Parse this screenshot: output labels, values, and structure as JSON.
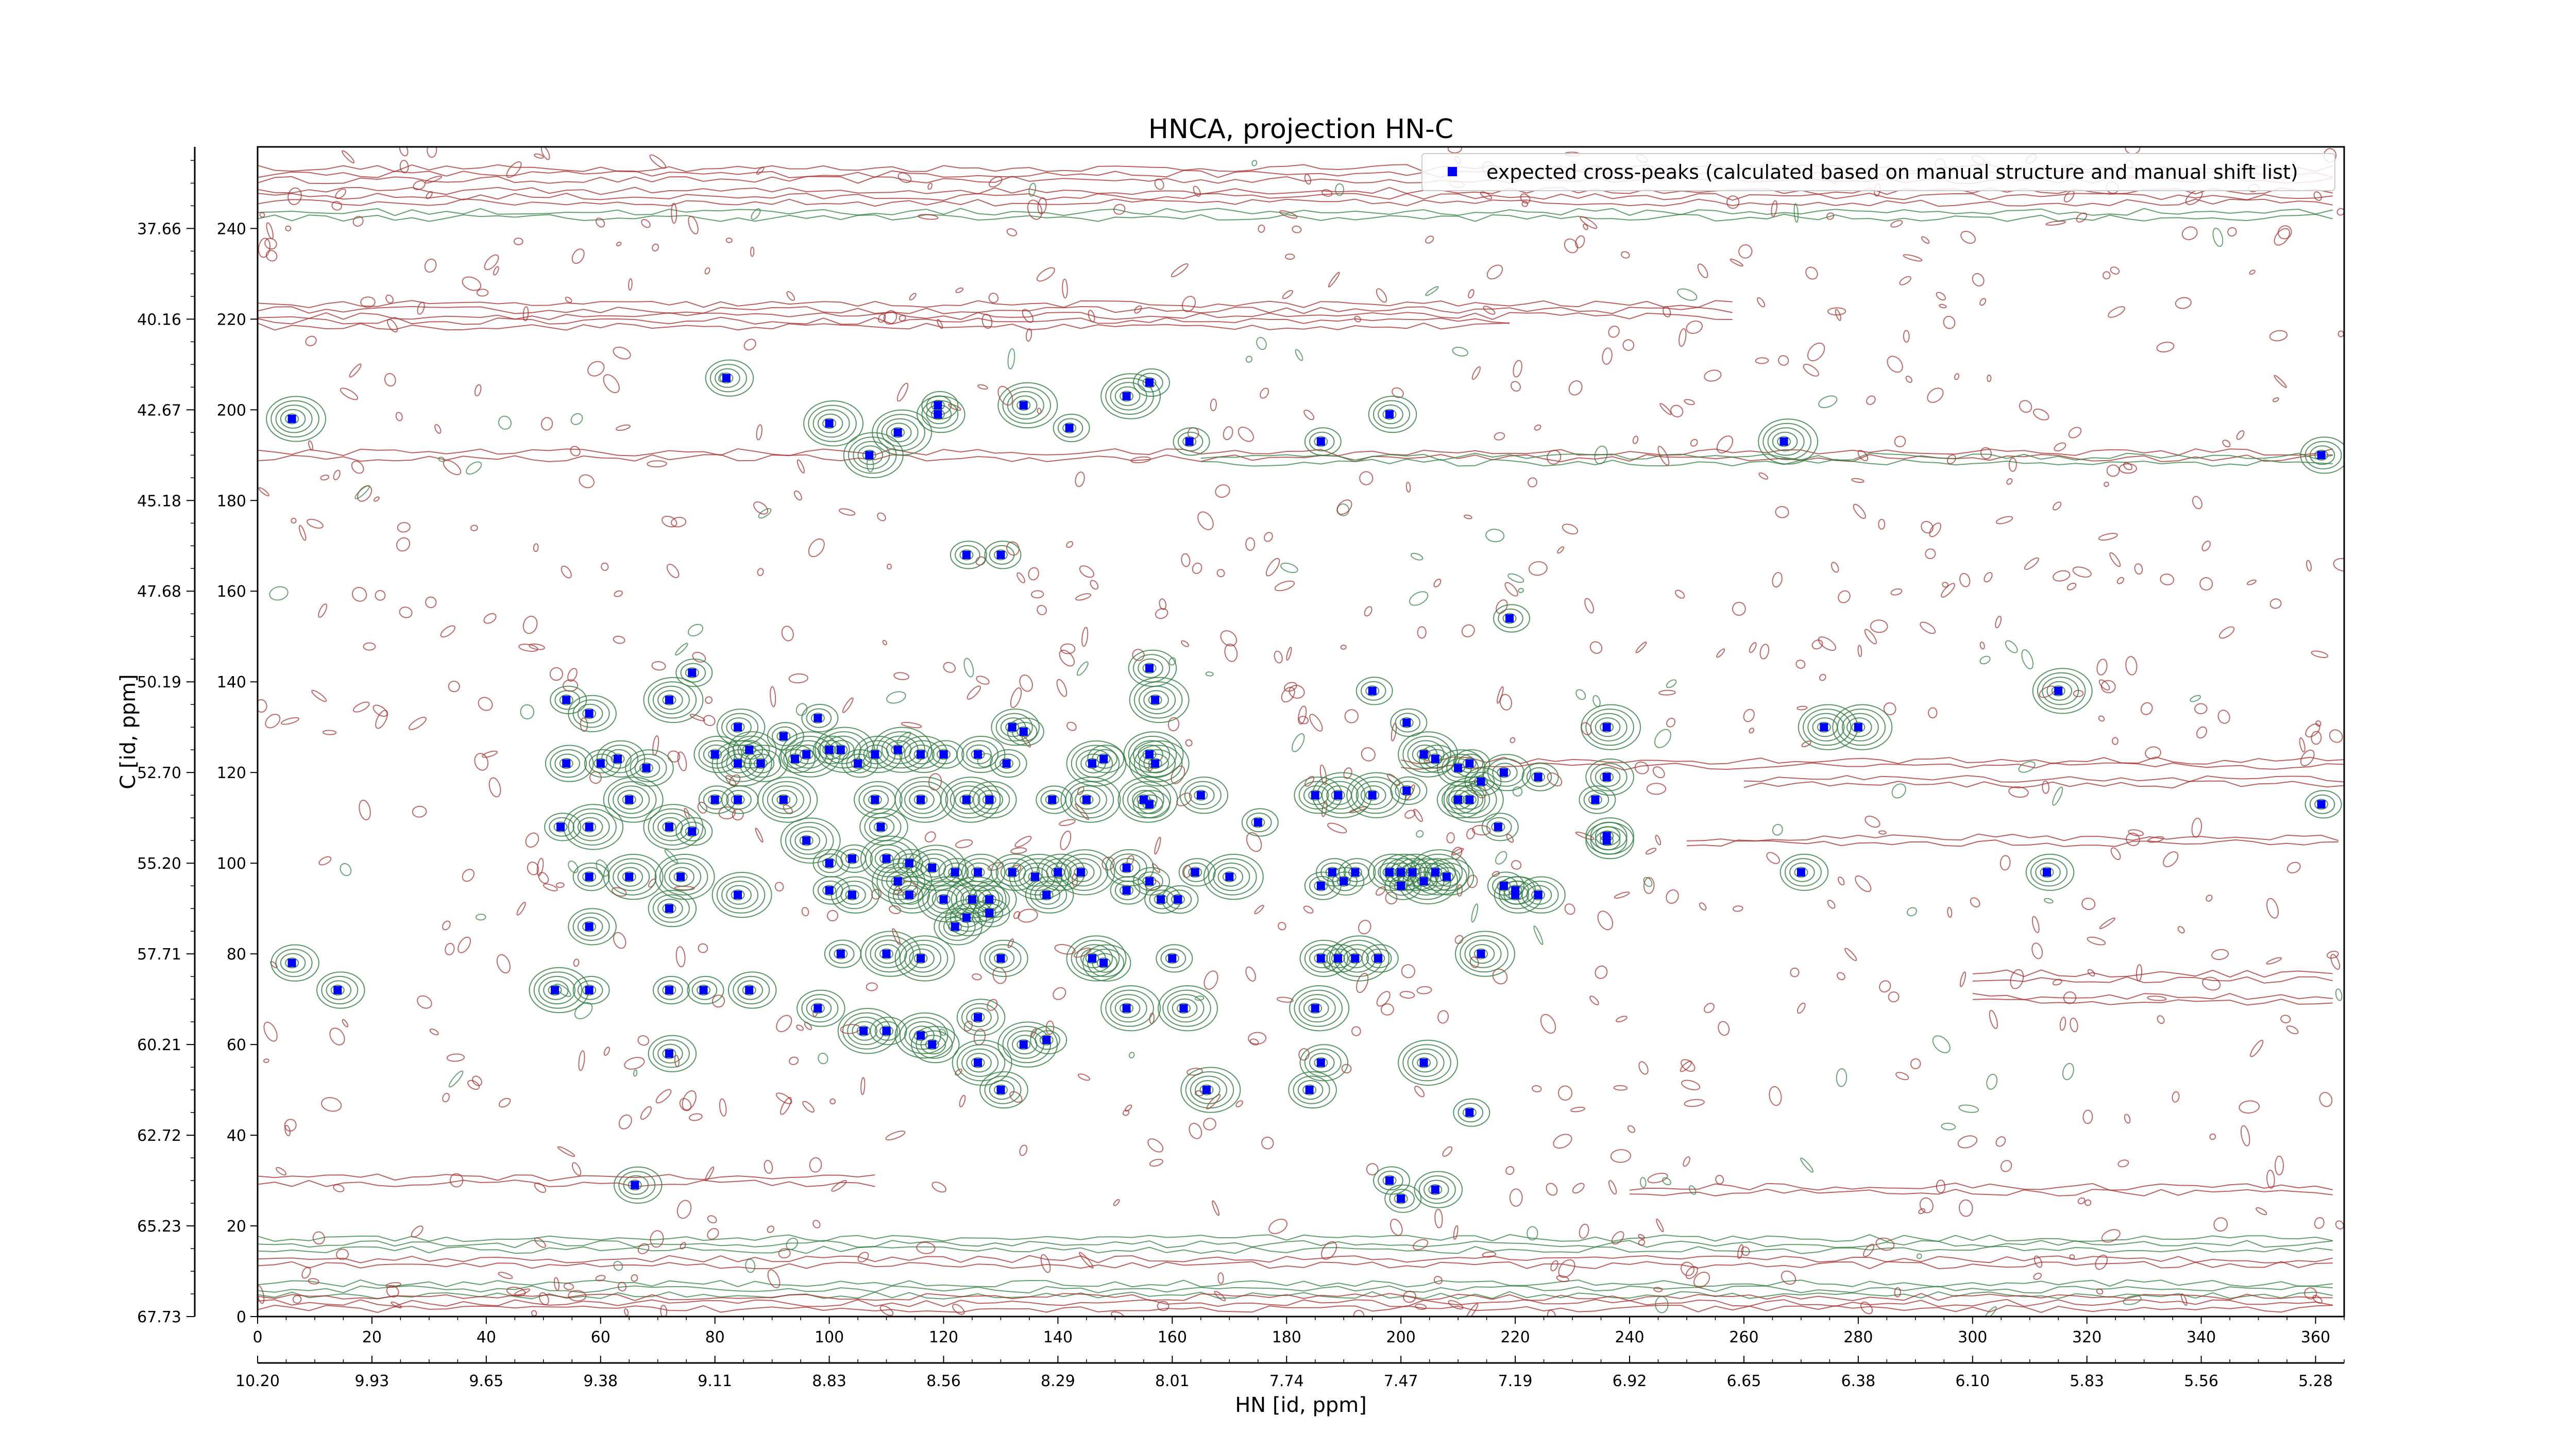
{
  "chart_data": {
    "type": "scatter",
    "title": "HNCA, projection HN-C",
    "xlabel": "HN [id, ppm]",
    "ylabel": "C [id, ppm]",
    "x_index_ticks": [
      "0",
      "20",
      "40",
      "60",
      "80",
      "100",
      "120",
      "140",
      "160",
      "180",
      "200",
      "220",
      "240",
      "260",
      "280",
      "300",
      "320",
      "340",
      "360"
    ],
    "x_ppm_ticks": [
      "10.20",
      "9.93",
      "9.65",
      "9.38",
      "9.11",
      "8.83",
      "8.56",
      "8.29",
      "8.01",
      "7.74",
      "7.47",
      "7.19",
      "6.92",
      "6.65",
      "6.38",
      "6.10",
      "5.83",
      "5.56",
      "5.28"
    ],
    "y_index_ticks": [
      "0",
      "20",
      "40",
      "60",
      "80",
      "100",
      "120",
      "140",
      "160",
      "180",
      "200",
      "220",
      "240"
    ],
    "y_ppm_ticks": [
      "67.73",
      "65.23",
      "62.72",
      "60.21",
      "57.71",
      "55.20",
      "52.70",
      "50.19",
      "47.68",
      "45.18",
      "42.67",
      "40.16",
      "37.66"
    ],
    "xlim": [
      0,
      365
    ],
    "ylim": [
      0,
      258
    ],
    "legend": {
      "placement": "top-right",
      "label": "expected cross-peaks (calculated based on manual structure and manual shift list)"
    },
    "colors": {
      "marker": "#0000ff",
      "contour_positive": "#2e7d3e",
      "contour_negative": "#a52a2a"
    },
    "series": [
      {
        "name": "expected cross-peaks (calculated based on manual structure and manual shift list)",
        "points": [
          [
            6,
            198
          ],
          [
            6,
            78
          ],
          [
            82,
            207
          ],
          [
            100,
            197
          ],
          [
            112,
            195
          ],
          [
            107,
            190
          ],
          [
            119,
            199
          ],
          [
            119,
            201
          ],
          [
            134,
            201
          ],
          [
            142,
            196
          ],
          [
            152,
            203
          ],
          [
            156,
            206
          ],
          [
            163,
            193
          ],
          [
            186,
            193
          ],
          [
            198,
            199
          ],
          [
            267,
            193
          ],
          [
            361,
            190
          ],
          [
            124,
            168
          ],
          [
            130,
            168
          ],
          [
            219,
            154
          ],
          [
            315,
            138
          ],
          [
            361,
            113
          ],
          [
            54,
            136
          ],
          [
            58,
            133
          ],
          [
            72,
            136
          ],
          [
            76,
            142
          ],
          [
            84,
            130
          ],
          [
            86,
            125
          ],
          [
            92,
            128
          ],
          [
            98,
            132
          ],
          [
            54,
            122
          ],
          [
            60,
            122
          ],
          [
            63,
            123
          ],
          [
            68,
            121
          ],
          [
            80,
            124
          ],
          [
            84,
            122
          ],
          [
            88,
            122
          ],
          [
            94,
            123
          ],
          [
            96,
            124
          ],
          [
            100,
            125
          ],
          [
            102,
            125
          ],
          [
            105,
            122
          ],
          [
            108,
            124
          ],
          [
            112,
            125
          ],
          [
            116,
            124
          ],
          [
            120,
            124
          ],
          [
            126,
            124
          ],
          [
            131,
            122
          ],
          [
            132,
            130
          ],
          [
            134,
            129
          ],
          [
            146,
            122
          ],
          [
            148,
            123
          ],
          [
            156,
            124
          ],
          [
            157,
            122
          ],
          [
            156,
            143
          ],
          [
            157,
            136
          ],
          [
            165,
            115
          ],
          [
            195,
            138
          ],
          [
            201,
            131
          ],
          [
            204,
            124
          ],
          [
            206,
            123
          ],
          [
            210,
            121
          ],
          [
            212,
            122
          ],
          [
            214,
            118
          ],
          [
            218,
            120
          ],
          [
            224,
            119
          ],
          [
            236,
            130
          ],
          [
            236,
            119
          ],
          [
            236,
            106
          ],
          [
            274,
            130
          ],
          [
            280,
            130
          ],
          [
            65,
            114
          ],
          [
            80,
            114
          ],
          [
            84,
            114
          ],
          [
            92,
            114
          ],
          [
            108,
            114
          ],
          [
            116,
            114
          ],
          [
            124,
            114
          ],
          [
            128,
            114
          ],
          [
            139,
            114
          ],
          [
            145,
            114
          ],
          [
            155,
            114
          ],
          [
            156,
            113
          ],
          [
            175,
            109
          ],
          [
            185,
            115
          ],
          [
            189,
            115
          ],
          [
            195,
            115
          ],
          [
            201,
            116
          ],
          [
            210,
            114
          ],
          [
            212,
            114
          ],
          [
            217,
            108
          ],
          [
            234,
            114
          ],
          [
            53,
            108
          ],
          [
            58,
            108
          ],
          [
            72,
            108
          ],
          [
            76,
            107
          ],
          [
            96,
            105
          ],
          [
            100,
            100
          ],
          [
            104,
            101
          ],
          [
            109,
            108
          ],
          [
            110,
            101
          ],
          [
            114,
            100
          ],
          [
            118,
            99
          ],
          [
            122,
            98
          ],
          [
            126,
            98
          ],
          [
            132,
            98
          ],
          [
            136,
            97
          ],
          [
            140,
            98
          ],
          [
            144,
            98
          ],
          [
            152,
            99
          ],
          [
            156,
            96
          ],
          [
            164,
            98
          ],
          [
            170,
            97
          ],
          [
            188,
            98
          ],
          [
            192,
            98
          ],
          [
            198,
            98
          ],
          [
            200,
            98
          ],
          [
            202,
            98
          ],
          [
            204,
            96
          ],
          [
            206,
            98
          ],
          [
            208,
            97
          ],
          [
            218,
            95
          ],
          [
            220,
            94
          ],
          [
            224,
            93
          ],
          [
            236,
            105
          ],
          [
            270,
            98
          ],
          [
            313,
            98
          ],
          [
            58,
            97
          ],
          [
            65,
            97
          ],
          [
            72,
            90
          ],
          [
            74,
            97
          ],
          [
            84,
            93
          ],
          [
            100,
            94
          ],
          [
            104,
            93
          ],
          [
            112,
            96
          ],
          [
            114,
            93
          ],
          [
            120,
            92
          ],
          [
            125,
            92
          ],
          [
            128,
            92
          ],
          [
            138,
            93
          ],
          [
            152,
            94
          ],
          [
            158,
            92
          ],
          [
            161,
            92
          ],
          [
            186,
            95
          ],
          [
            190,
            96
          ],
          [
            200,
            95
          ],
          [
            220,
            93
          ],
          [
            58,
            86
          ],
          [
            124,
            88
          ],
          [
            122,
            86
          ],
          [
            128,
            89
          ],
          [
            102,
            80
          ],
          [
            110,
            80
          ],
          [
            116,
            79
          ],
          [
            130,
            79
          ],
          [
            146,
            79
          ],
          [
            148,
            78
          ],
          [
            160,
            79
          ],
          [
            186,
            79
          ],
          [
            189,
            79
          ],
          [
            192,
            79
          ],
          [
            196,
            79
          ],
          [
            214,
            80
          ],
          [
            14,
            72
          ],
          [
            52,
            72
          ],
          [
            58,
            72
          ],
          [
            72,
            72
          ],
          [
            78,
            72
          ],
          [
            86,
            72
          ],
          [
            98,
            68
          ],
          [
            106,
            63
          ],
          [
            110,
            63
          ],
          [
            116,
            62
          ],
          [
            118,
            60
          ],
          [
            126,
            66
          ],
          [
            134,
            60
          ],
          [
            138,
            61
          ],
          [
            152,
            68
          ],
          [
            162,
            68
          ],
          [
            185,
            68
          ],
          [
            72,
            58
          ],
          [
            126,
            56
          ],
          [
            130,
            50
          ],
          [
            166,
            50
          ],
          [
            184,
            50
          ],
          [
            186,
            56
          ],
          [
            204,
            56
          ],
          [
            212,
            45
          ],
          [
            66,
            29
          ],
          [
            200,
            26
          ],
          [
            206,
            28
          ],
          [
            198,
            30
          ]
        ]
      }
    ]
  }
}
